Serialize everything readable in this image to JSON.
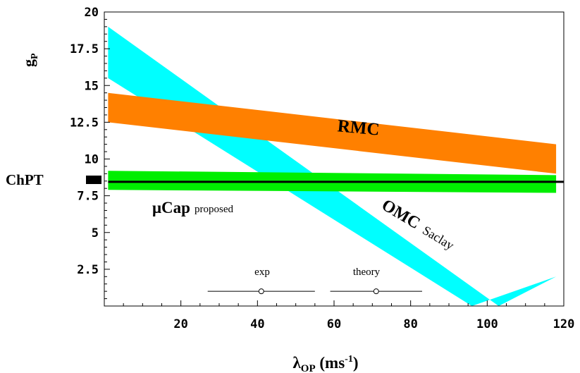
{
  "chart_data": {
    "type": "area",
    "xlim": [
      0,
      120
    ],
    "ylim": [
      0,
      20
    ],
    "grid": false,
    "xticks": [
      "20",
      "40",
      "60",
      "80",
      "100",
      "120"
    ],
    "yticks": [
      "2.5",
      "5",
      "7.5",
      "10",
      "12.5",
      "15",
      "17.5",
      "20"
    ],
    "xtick_values": [
      20,
      40,
      60,
      80,
      100,
      120
    ],
    "ytick_values": [
      2.5,
      5,
      7.5,
      10,
      12.5,
      15,
      17.5,
      20
    ],
    "xlabel": {
      "main": "λ",
      "sub": "OP",
      "rest": " (ms",
      "sup": "-1",
      "close": ")"
    },
    "ylabel": {
      "main": "g",
      "sub": "P"
    },
    "bands": [
      {
        "key": "omc",
        "color": "#00ffff",
        "upper": [
          [
            1,
            19.0
          ],
          [
            103,
            0.0
          ],
          [
            118,
            2.0
          ]
        ],
        "lower": [
          [
            1,
            15.5
          ],
          [
            96,
            0.0
          ]
        ]
      },
      {
        "key": "rmc",
        "color": "#ff8000",
        "upper": [
          [
            1,
            14.5
          ],
          [
            118,
            11.0
          ]
        ],
        "lower": [
          [
            1,
            12.5
          ],
          [
            118,
            9.0
          ]
        ]
      },
      {
        "key": "mucap",
        "color": "#00ee00",
        "upper": [
          [
            1,
            9.2
          ],
          [
            118,
            8.9
          ]
        ],
        "lower": [
          [
            1,
            7.9
          ],
          [
            118,
            7.7
          ]
        ]
      }
    ],
    "lines": [
      {
        "key": "chpt",
        "color": "#000000",
        "points": [
          [
            1,
            8.45
          ],
          [
            120,
            8.45
          ]
        ]
      }
    ],
    "labels": {
      "rmc": "RMC",
      "omc": "OMC",
      "omc_sub": "Saclay",
      "mucap": "μCap",
      "mucap_sub": "proposed",
      "chpt": "ChPT",
      "exp": "exp",
      "theory": "theory"
    },
    "error_bars": [
      {
        "key": "exp",
        "x": 41,
        "y": 1.0,
        "xmin": 27,
        "xmax": 55
      },
      {
        "key": "theory",
        "x": 71,
        "y": 1.0,
        "xmin": 59,
        "xmax": 83
      }
    ]
  }
}
